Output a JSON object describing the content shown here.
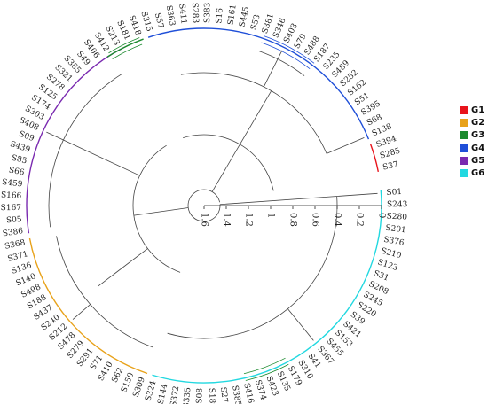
{
  "tips": [
    "S01",
    "S243",
    "S280",
    "S201",
    "S376",
    "S210",
    "S123",
    "S31",
    "S208",
    "S245",
    "S220",
    "S39",
    "S421",
    "S153",
    "S455",
    "S367",
    "S41",
    "S310",
    "S179",
    "S135",
    "S423",
    "S374",
    "S416",
    "S385",
    "S27",
    "S189",
    "S08",
    "S335",
    "S372",
    "S144",
    "S324",
    "S309",
    "S150",
    "S62",
    "S410",
    "S71",
    "S291",
    "S279",
    "S478",
    "S212",
    "S240",
    "S437",
    "S188",
    "S498",
    "S140",
    "S136",
    "S371",
    "S368",
    "S386",
    "S05",
    "S167",
    "S166",
    "S459",
    "S66",
    "S85",
    "S439",
    "S09",
    "S408",
    "S303",
    "S174",
    "S125",
    "S278",
    "S321",
    "S385",
    "S49",
    "S406",
    "S412",
    "S213",
    "S181",
    "S418",
    "S315",
    "S57",
    "S363",
    "S411",
    "S283",
    "S383",
    "S16",
    "S161",
    "S445",
    "S53",
    "S381",
    "S346",
    "S403",
    "S79",
    "S488",
    "S187",
    "S235",
    "S489",
    "S252",
    "S162",
    "S51",
    "S395",
    "S68",
    "S138",
    "S394",
    "S285",
    "S37"
  ],
  "axis": {
    "ticks": [
      "0",
      "0.2",
      "0.4",
      "0.6",
      "0.8",
      "1",
      "1.2",
      "1.4",
      "1.6"
    ]
  },
  "groups": [
    {
      "name": "G1",
      "color": "#e8141c"
    },
    {
      "name": "G2",
      "color": "#e8a21a"
    },
    {
      "name": "G3",
      "color": "#1b8a2e"
    },
    {
      "name": "G4",
      "color": "#1f4fd8"
    },
    {
      "name": "G5",
      "color": "#7a2ab0"
    },
    {
      "name": "G6",
      "color": "#22d8e0"
    }
  ]
}
